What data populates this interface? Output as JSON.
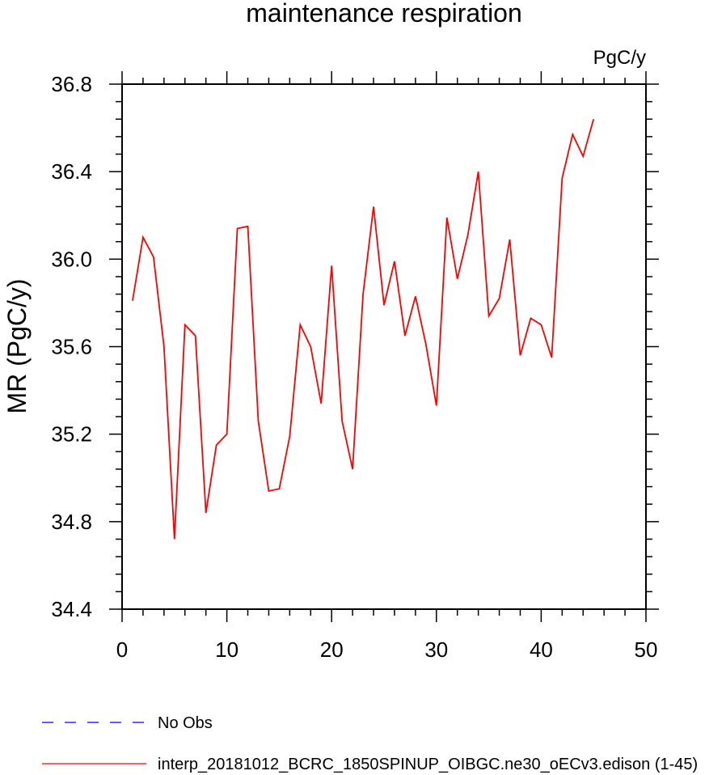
{
  "chart_data": {
    "type": "line",
    "title": "maintenance respiration",
    "units_label": "PgC/y",
    "ylabel": "MR  (PgC/y)",
    "xlabel": "",
    "xlim": [
      0,
      50
    ],
    "ylim": [
      34.4,
      36.8
    ],
    "x_ticks": [
      0,
      10,
      20,
      30,
      40,
      50
    ],
    "x_tick_labels": [
      "0",
      "10",
      "20",
      "30",
      "40",
      "50"
    ],
    "y_ticks": [
      34.4,
      34.8,
      35.2,
      35.6,
      36.0,
      36.4,
      36.8
    ],
    "y_tick_labels": [
      "34.4",
      "34.8",
      "35.2",
      "35.6",
      "36.0",
      "36.4",
      "36.8"
    ],
    "grid": false,
    "legend_placement": "bottom",
    "series": [
      {
        "name": "interp_20181012_BCRC_1850SPINUP_OIBGC.ne30_oECv3.edison (1-45)",
        "color": "#ff0000",
        "style": "solid",
        "x": [
          1,
          2,
          3,
          4,
          5,
          6,
          7,
          8,
          9,
          10,
          11,
          12,
          13,
          14,
          15,
          16,
          17,
          18,
          19,
          20,
          21,
          22,
          23,
          24,
          25,
          26,
          27,
          28,
          29,
          30,
          31,
          32,
          33,
          34,
          35,
          36,
          37,
          38,
          39,
          40,
          41,
          42,
          43,
          44,
          45
        ],
        "values": [
          35.81,
          36.1,
          36.01,
          35.6,
          34.72,
          35.7,
          35.65,
          34.84,
          35.15,
          35.2,
          36.14,
          36.15,
          35.26,
          34.94,
          34.95,
          35.19,
          35.7,
          35.6,
          35.34,
          35.97,
          35.26,
          35.04,
          35.84,
          36.24,
          35.79,
          35.99,
          35.65,
          35.83,
          35.61,
          35.33,
          36.19,
          35.91,
          36.11,
          36.4,
          35.74,
          35.82,
          36.09,
          35.56,
          35.73,
          35.7,
          35.55,
          36.37,
          36.57,
          36.47,
          36.64
        ]
      }
    ],
    "legend": [
      {
        "label": "No Obs",
        "color": "#0000ff",
        "style": "dashed"
      },
      {
        "label": "interp_20181012_BCRC_1850SPINUP_OIBGC.ne30_oECv3.edison (1-45)",
        "color": "#ff0000",
        "style": "solid"
      }
    ]
  }
}
